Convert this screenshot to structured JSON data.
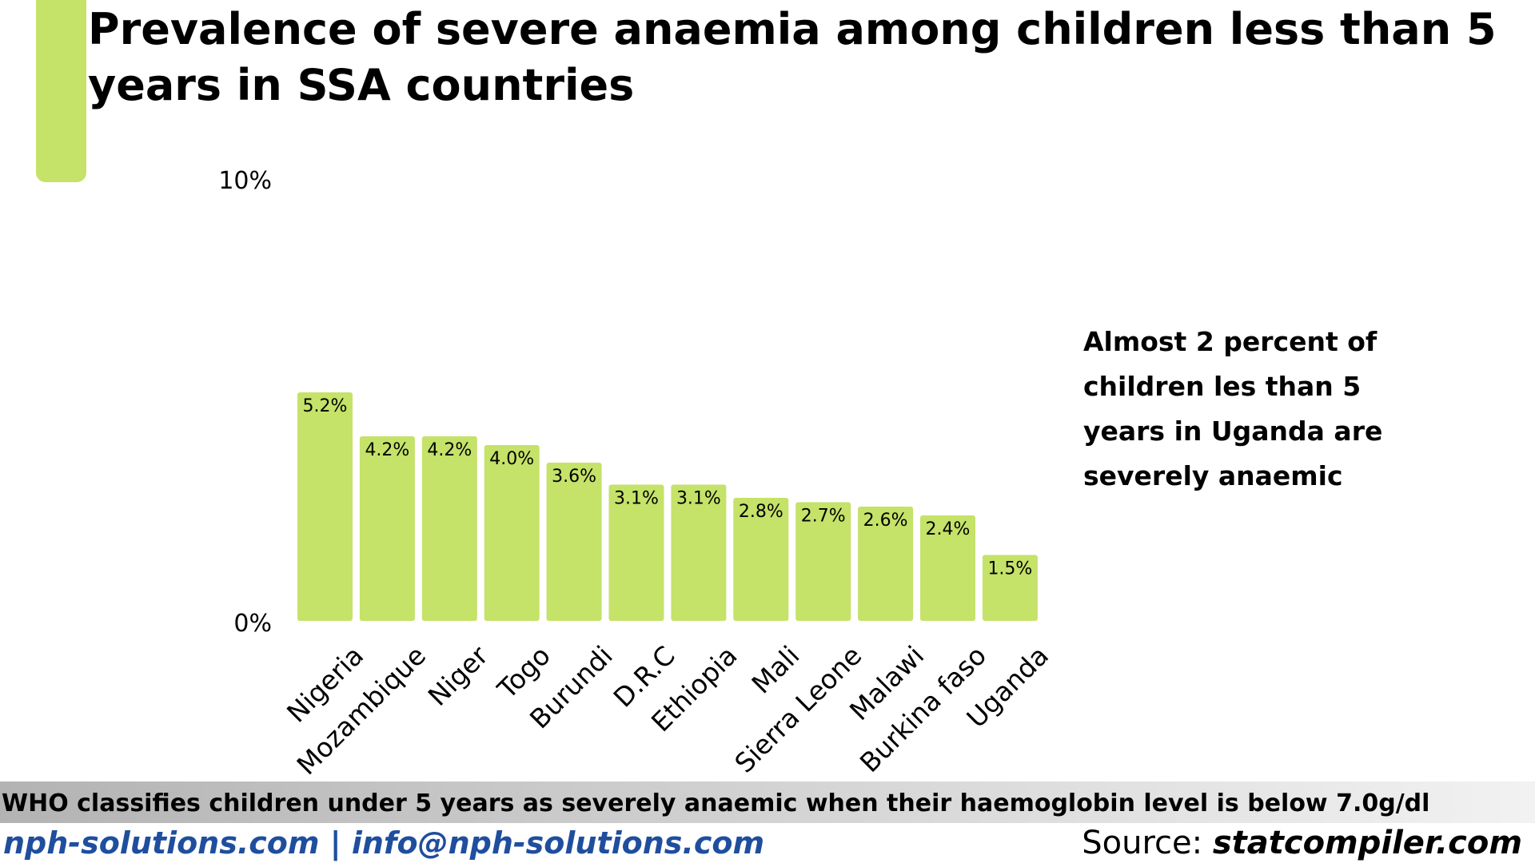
{
  "title": "Prevalence of severe anaemia among children less than 5 years in SSA countries",
  "annotation": "Almost 2 percent of children les than 5 years in Uganda are severely anaemic",
  "footnote": "WHO classifies children under 5 years as severely anaemic when their haemoglobin level is below 7.0g/dl",
  "website": "nph-solutions.com | info@nph-solutions.com",
  "source_label": "Source:",
  "source_value": "statcompiler.com",
  "colors": {
    "bar": "#c5e269",
    "accent": "#c5e269",
    "link": "#1f4e9e"
  },
  "chart_data": {
    "type": "bar",
    "title": "Prevalence of severe anaemia among children less than 5 years in SSA countries",
    "xlabel": "",
    "ylabel": "",
    "ylim": [
      0,
      10
    ],
    "y_ticks": [
      "0%",
      "10%"
    ],
    "grid": false,
    "categories": [
      "Nigeria",
      "Mozambique",
      "Niger",
      "Togo",
      "Burundi",
      "D.R.C",
      "Ethiopia",
      "Mali",
      "Sierra Leone",
      "Malawi",
      "Burkina faso",
      "Uganda"
    ],
    "values": [
      5.2,
      4.2,
      4.2,
      4.0,
      3.6,
      3.1,
      3.1,
      2.8,
      2.7,
      2.6,
      2.4,
      1.5
    ],
    "data_labels": [
      "5.2%",
      "4.2%",
      "4.2%",
      "4.0%",
      "3.6%",
      "3.1%",
      "3.1%",
      "2.8%",
      "2.7%",
      "2.6%",
      "2.4%",
      "1.5%"
    ]
  }
}
